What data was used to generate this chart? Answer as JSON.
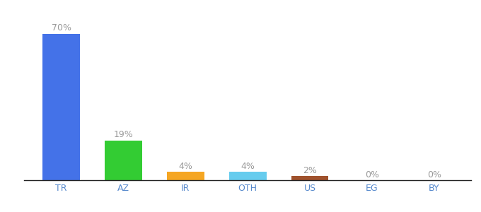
{
  "categories": [
    "TR",
    "AZ",
    "IR",
    "OTH",
    "US",
    "EG",
    "BY"
  ],
  "values": [
    70,
    19,
    4,
    4,
    2,
    0,
    0
  ],
  "labels": [
    "70%",
    "19%",
    "4%",
    "4%",
    "2%",
    "0%",
    "0%"
  ],
  "bar_colors": [
    "#4472e8",
    "#33cc33",
    "#f5a623",
    "#66ccee",
    "#a0522d",
    "#cccccc",
    "#cccccc"
  ],
  "background_color": "#ffffff",
  "label_color": "#999999",
  "label_fontsize": 9,
  "tick_fontsize": 9,
  "tick_color": "#5588cc",
  "ylim": [
    0,
    78
  ]
}
